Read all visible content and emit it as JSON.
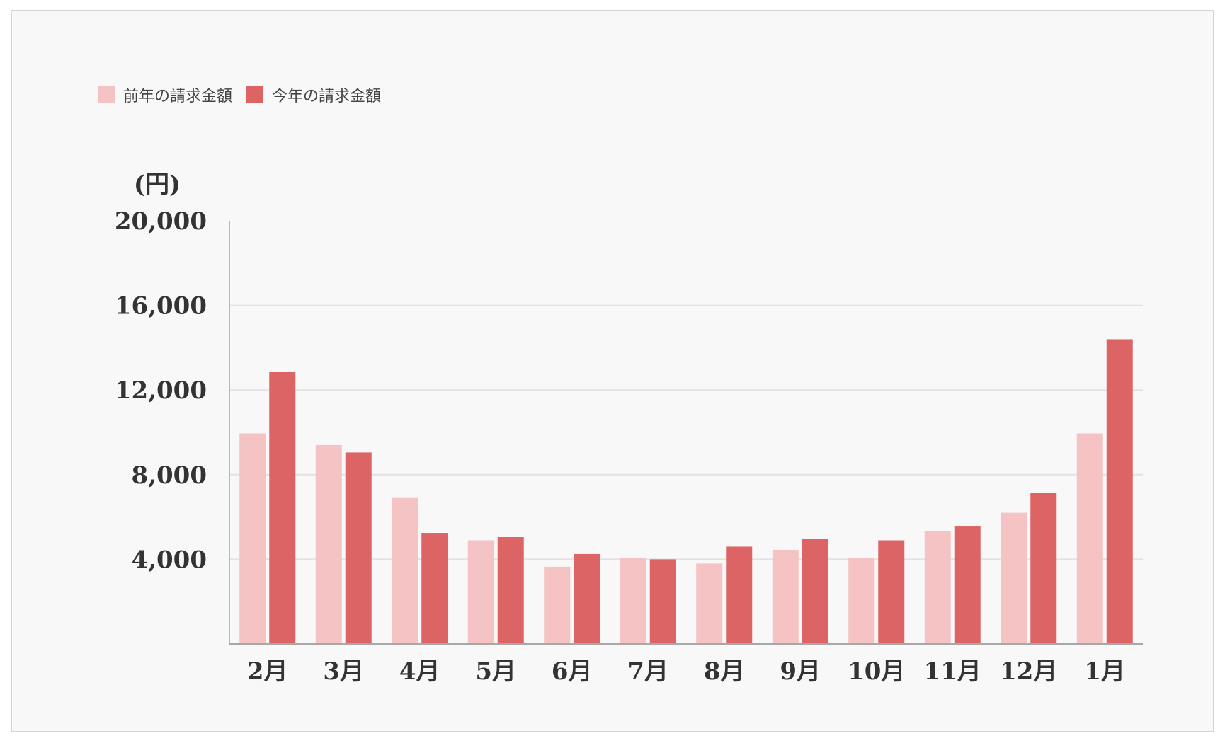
{
  "chart_data": {
    "type": "bar",
    "unit_label": "(円)",
    "categories": [
      "2月",
      "3月",
      "4月",
      "5月",
      "6月",
      "7月",
      "8月",
      "9月",
      "10月",
      "11月",
      "12月",
      "1月"
    ],
    "series": [
      {
        "name": "前年の請求金額",
        "color": "#f5c3c3",
        "values": [
          9950,
          9400,
          6900,
          4900,
          3650,
          4050,
          3800,
          4450,
          4050,
          5350,
          6200,
          9950
        ]
      },
      {
        "name": "今年の請求金額",
        "color": "#dc6464",
        "values": [
          12850,
          9050,
          5250,
          5050,
          4250,
          4000,
          4600,
          4950,
          4900,
          5550,
          7150,
          14400
        ]
      }
    ],
    "ylim": [
      0,
      20000
    ],
    "yticks": [
      4000,
      8000,
      12000,
      16000,
      20000
    ],
    "ytick_labels": [
      "4,000",
      "8,000",
      "12,000",
      "16,000",
      "20,000"
    ],
    "grid": true,
    "legend_position": "top-left"
  }
}
